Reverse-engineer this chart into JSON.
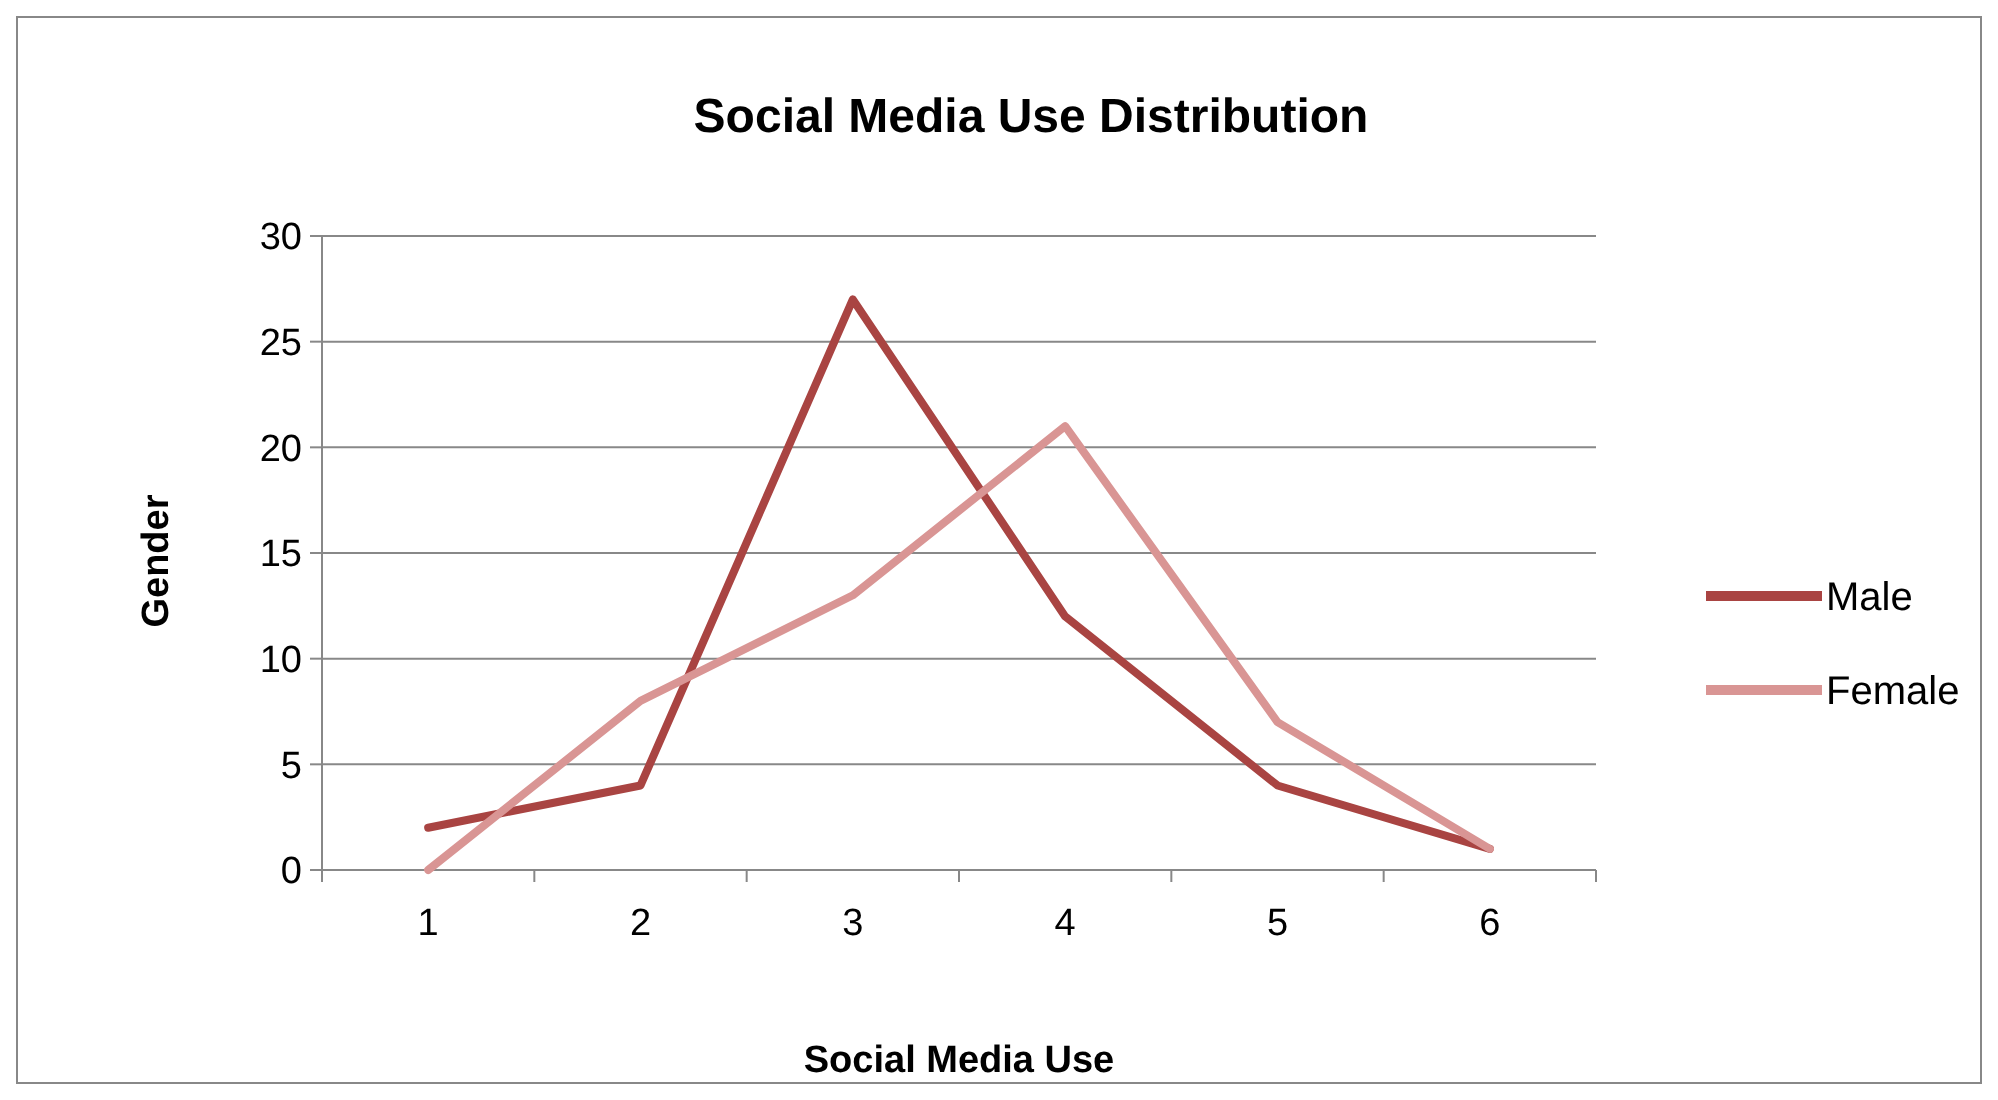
{
  "chart_data": {
    "type": "line",
    "title": "Social Media Use Distribution",
    "xlabel": "Social Media Use",
    "ylabel": "Gender",
    "categories": [
      "1",
      "2",
      "3",
      "4",
      "5",
      "6"
    ],
    "series": [
      {
        "name": "Male",
        "color": "#a94442",
        "values": [
          2,
          4,
          27,
          12,
          4,
          1
        ]
      },
      {
        "name": "Female",
        "color": "#d99594",
        "values": [
          0,
          8,
          13,
          21,
          7,
          1
        ]
      }
    ],
    "ylim": [
      0,
      30
    ],
    "yticks": [
      0,
      5,
      10,
      15,
      20,
      25,
      30
    ],
    "grid": "y",
    "legend": "right",
    "marker": "none",
    "line_style": "solid"
  }
}
